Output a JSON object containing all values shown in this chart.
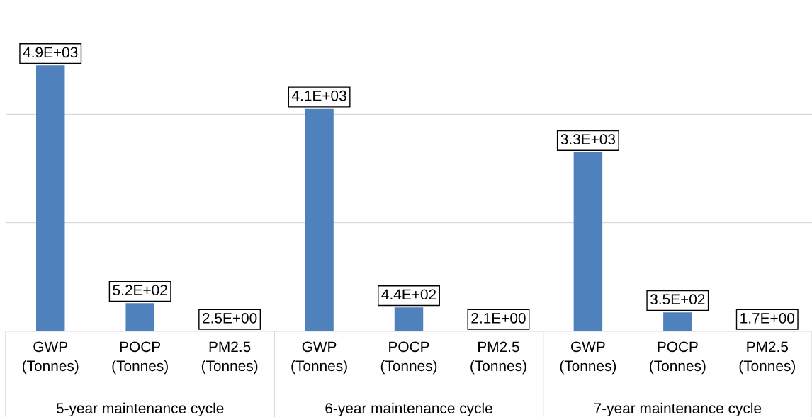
{
  "chart_data": {
    "type": "bar",
    "categories": [
      "GWP\n(Tonnes)",
      "POCP\n(Tonnes)",
      "PM2.5\n(Tonnes)",
      "GWP\n(Tonnes)",
      "POCP\n(Tonnes)",
      "PM2.5\n(Tonnes)",
      "GWP\n(Tonnes)",
      "POCP\n(Tonnes)",
      "PM2.5\n(Tonnes)"
    ],
    "values": [
      4900,
      520,
      2.5,
      4100,
      440,
      2.1,
      3300,
      350,
      1.7
    ],
    "value_labels": [
      "4.9E+03",
      "5.2E+02",
      "2.5E+00",
      "4.1E+03",
      "4.4E+02",
      "2.1E+00",
      "3.3E+03",
      "3.5E+02",
      "1.7E+00"
    ],
    "color": "#4f81bd",
    "annotations": [
      "5-year maintenance cycle",
      "6-year maintenance cycle",
      "7-year maintenance cycle"
    ],
    "ylim": [
      0,
      6000
    ],
    "yticks": [
      {
        "value": 0,
        "label": null
      },
      {
        "value": 2000,
        "label": null
      },
      {
        "value": 4000,
        "label": null
      },
      {
        "value": 6000,
        "label": null
      }
    ],
    "tick_labels": "x",
    "grid": "y"
  }
}
